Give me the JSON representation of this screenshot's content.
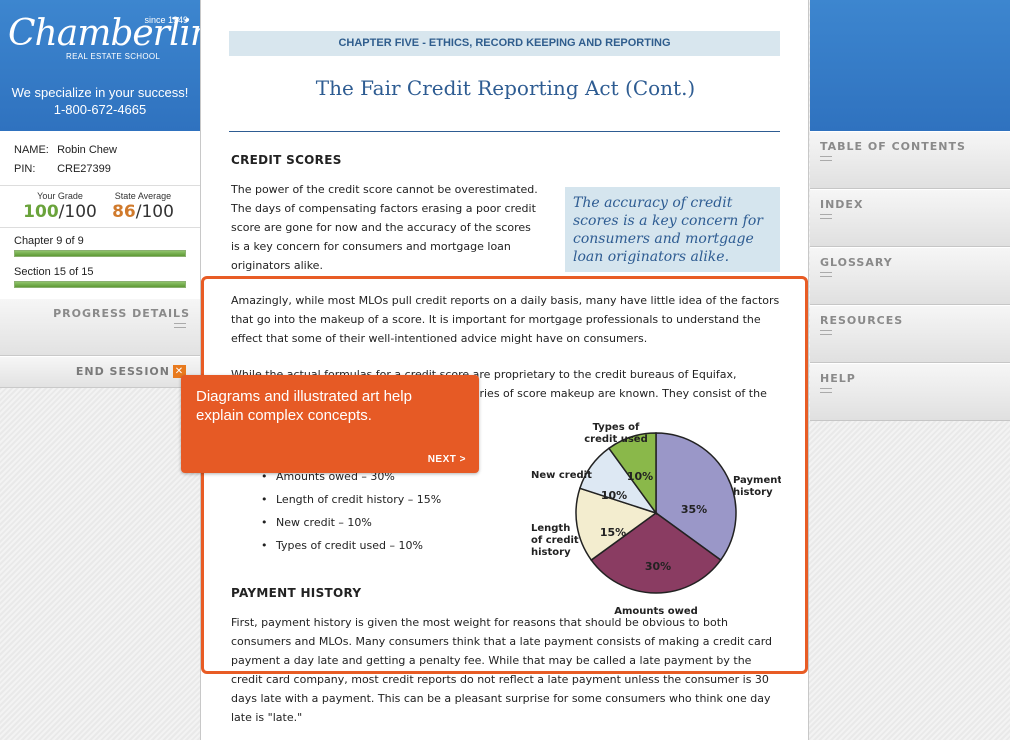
{
  "brand": {
    "since": "since 1949",
    "name": "Chamberlin",
    "subtitle": "REAL ESTATE SCHOOL",
    "tagline": "We specialize in your success!",
    "phone": "1-800-672-4665"
  },
  "user": {
    "name_label": "NAME:",
    "name": "Robin Chew",
    "pin_label": "PIN:",
    "pin": "CRE27399"
  },
  "grades": {
    "your_label": "Your Grade",
    "your_score": "100",
    "your_total": "/100",
    "avg_label": "State Average",
    "avg_score": "86",
    "avg_total": "/100"
  },
  "progress": {
    "chapter_label": "Chapter 9 of 9",
    "chapter_fraction": 1.0,
    "section_label": "Section 15 of 15",
    "section_fraction": 1.0,
    "details_button": "PROGRESS DETAILS",
    "end_session_button": "END SESSION"
  },
  "nav": {
    "items": [
      "TABLE OF CONTENTS",
      "INDEX",
      "GLOSSARY",
      "RESOURCES",
      "HELP"
    ]
  },
  "content": {
    "chapter_banner": "CHAPTER FIVE - ETHICS, RECORD KEEPING AND REPORTING",
    "title": "The Fair Credit Reporting Act (Cont.)",
    "heading_credit_scores": "CREDIT SCORES",
    "para_1": "The power of the credit score cannot be overestimated. The days of compensating factors erasing a poor credit score are gone for now and the accuracy of the scores is a key concern for consumers and mortgage loan originators alike.",
    "pull_quote": "The accuracy of credit scores is a key concern for consumers and mortgage loan originators alike.",
    "para_2": "Amazingly, while most MLOs pull credit reports on a daily basis, many have little idea of the factors that go into the makeup of a score. It is important for mortgage professionals to understand the effect that some of their well-intentioned advice might have on consumers.",
    "para_3": "While the actual formulas for a credit score are proprietary to the credit bureaus of Equifax, Experian and TransUnion, the general categories of score makeup are known. They consist of the following:",
    "bullets": [
      "Amounts owed – 30%",
      "Length of credit history – 15%",
      "New credit – 10%",
      "Types of credit used – 10%"
    ],
    "heading_payment_history": "PAYMENT HISTORY",
    "para_4": "First, payment history is given the most weight for reasons that should be obvious to both consumers and MLOs. Many consumers think that a late payment consists of making a credit card payment a day late and getting a penalty fee. While that may be called a late payment by the credit card company, most credit reports do not reflect a late payment unless the consumer is 30 days late with a payment. This can be a pleasant surprise for some consumers who think one day late is \"late.\""
  },
  "callout": {
    "text": "Diagrams and illustrated art help explain complex concepts.",
    "next": "NEXT >"
  },
  "chart_data": {
    "type": "pie",
    "title": "",
    "slices": [
      {
        "label": "Payment history",
        "value": 35,
        "color": "#9a97c8"
      },
      {
        "label": "Amounts owed",
        "value": 30,
        "color": "#8a3c62"
      },
      {
        "label": "Length of credit history",
        "value": 15,
        "color": "#f3edcf"
      },
      {
        "label": "New credit",
        "value": 10,
        "color": "#dde8f3"
      },
      {
        "label": "Types of credit used",
        "value": 10,
        "color": "#8ab84a"
      }
    ],
    "value_labels": [
      "35%",
      "30%",
      "15%",
      "10%",
      "10%"
    ],
    "legend": "none"
  }
}
